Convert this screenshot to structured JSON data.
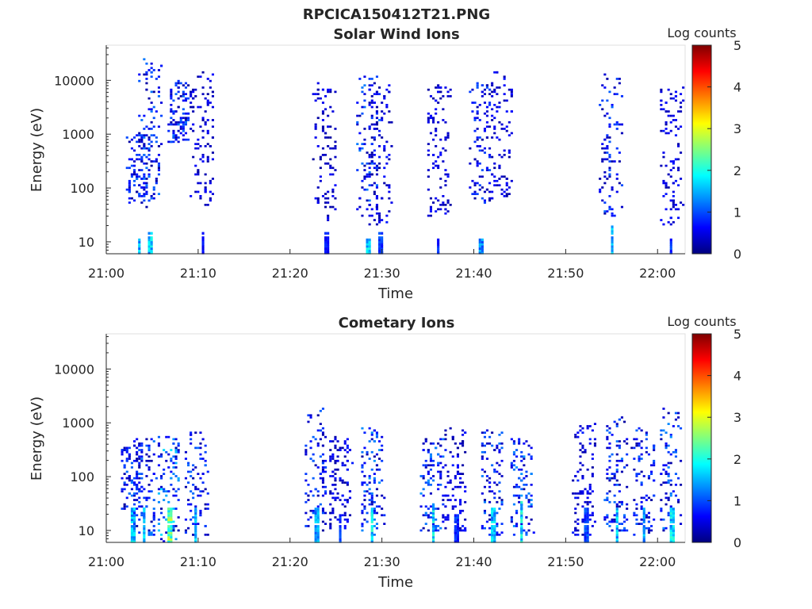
{
  "figure": {
    "title": "RPCICA150412T21.PNG"
  },
  "colormap": {
    "name": "jet",
    "stops": [
      "#00007f",
      "#0000ff",
      "#007fff",
      "#00ffff",
      "#7fff7f",
      "#ffff00",
      "#ff7f00",
      "#ff0000",
      "#7f0000"
    ]
  },
  "chart_data": [
    {
      "type": "heatmap",
      "title": "Solar Wind Ions",
      "xlabel": "Time",
      "ylabel": "Energy (eV)",
      "x_ticks": [
        "21:00",
        "21:10",
        "21:20",
        "21:30",
        "21:40",
        "21:50",
        "22:00"
      ],
      "x_range": [
        "21:00",
        "22:03"
      ],
      "y_scale": "log",
      "y_ticks": [
        "10",
        "100",
        "1000",
        "10000"
      ],
      "y_range": [
        6,
        45000
      ],
      "colorbar": {
        "label": "Log counts",
        "ticks": [
          "0",
          "1",
          "2",
          "3",
          "4",
          "5"
        ],
        "range": [
          0,
          5
        ]
      },
      "clusters": [
        {
          "t": 3.5,
          "emin": 40,
          "emax": 1000,
          "dense": [
            6,
            12
          ],
          "peak": 1.9
        },
        {
          "t": 4.8,
          "emin": 60,
          "emax": 25000,
          "dense": [
            6,
            15
          ],
          "peak": 2.0
        },
        {
          "t": 8.0,
          "emin": 700,
          "emax": 10000,
          "dense": null,
          "peak": 1.9
        },
        {
          "t": 10.5,
          "emin": 50,
          "emax": 14000,
          "dense": [
            6,
            15
          ],
          "peak": 0.9
        },
        {
          "t": 23.8,
          "emin": 25,
          "emax": 9000,
          "dense": [
            6,
            14
          ],
          "peak": 0.9
        },
        {
          "t": 28.5,
          "emin": 30,
          "emax": 12000,
          "dense": [
            6,
            12
          ],
          "peak": 2.0
        },
        {
          "t": 29.8,
          "emin": 20,
          "emax": 8000,
          "dense": [
            6,
            14
          ],
          "peak": 1.1
        },
        {
          "t": 36.2,
          "emin": 30,
          "emax": 9000,
          "dense": [
            6,
            12
          ],
          "peak": 1.0
        },
        {
          "t": 40.8,
          "emin": 50,
          "emax": 9000,
          "dense": [
            6,
            12
          ],
          "peak": 1.6
        },
        {
          "t": 43.0,
          "emin": 60,
          "emax": 15000,
          "dense": null,
          "peak": 1.0
        },
        {
          "t": 55.0,
          "emin": 25,
          "emax": 13000,
          "dense": [
            6,
            20
          ],
          "peak": 1.8
        },
        {
          "t": 61.5,
          "emin": 20,
          "emax": 8000,
          "dense": [
            6,
            12
          ],
          "peak": 1.1
        }
      ]
    },
    {
      "type": "heatmap",
      "title": "Cometary Ions",
      "xlabel": "Time",
      "ylabel": "Energy (eV)",
      "x_ticks": [
        "21:00",
        "21:10",
        "21:20",
        "21:30",
        "21:40",
        "21:50",
        "22:00"
      ],
      "x_range": [
        "21:00",
        "22:03"
      ],
      "y_scale": "log",
      "y_ticks": [
        "10",
        "100",
        "1000",
        "10000"
      ],
      "y_range": [
        6,
        45000
      ],
      "colorbar": {
        "label": "Log counts",
        "ticks": [
          "0",
          "1",
          "2",
          "3",
          "4",
          "5"
        ],
        "range": [
          0,
          5
        ]
      },
      "clusters": [
        {
          "t": 2.8,
          "emin": 25,
          "emax": 400,
          "dense": [
            6,
            25
          ],
          "peak": 2.0
        },
        {
          "t": 4.2,
          "emin": 8,
          "emax": 500,
          "dense": [
            6,
            25
          ],
          "peak": 2.0
        },
        {
          "t": 6.8,
          "emin": 6,
          "emax": 600,
          "dense": [
            6,
            25
          ],
          "peak": 3.0
        },
        {
          "t": 9.8,
          "emin": 8,
          "emax": 700,
          "dense": [
            6,
            25
          ],
          "peak": 1.9
        },
        {
          "t": 22.8,
          "emin": 10,
          "emax": 1800,
          "dense": [
            6,
            25
          ],
          "peak": 1.8
        },
        {
          "t": 25.5,
          "emin": 10,
          "emax": 600,
          "dense": [
            6,
            20
          ],
          "peak": 1.1
        },
        {
          "t": 29.0,
          "emin": 8,
          "emax": 800,
          "dense": [
            6,
            25
          ],
          "peak": 2.2
        },
        {
          "t": 35.5,
          "emin": 10,
          "emax": 500,
          "dense": [
            6,
            30
          ],
          "peak": 2.2
        },
        {
          "t": 38.0,
          "emin": 8,
          "emax": 800,
          "dense": [
            6,
            20
          ],
          "peak": 1.1
        },
        {
          "t": 42.0,
          "emin": 8,
          "emax": 700,
          "dense": [
            6,
            25
          ],
          "peak": 2.0
        },
        {
          "t": 45.3,
          "emin": 8,
          "emax": 500,
          "dense": [
            6,
            35
          ],
          "peak": 2.3
        },
        {
          "t": 52.0,
          "emin": 8,
          "emax": 1000,
          "dense": [
            6,
            25
          ],
          "peak": 1.2
        },
        {
          "t": 55.5,
          "emin": 8,
          "emax": 1300,
          "dense": [
            6,
            25
          ],
          "peak": 2.0
        },
        {
          "t": 58.5,
          "emin": 8,
          "emax": 800,
          "dense": [
            6,
            25
          ],
          "peak": 1.8
        },
        {
          "t": 61.5,
          "emin": 8,
          "emax": 1800,
          "dense": [
            6,
            25
          ],
          "peak": 2.2
        }
      ]
    }
  ]
}
